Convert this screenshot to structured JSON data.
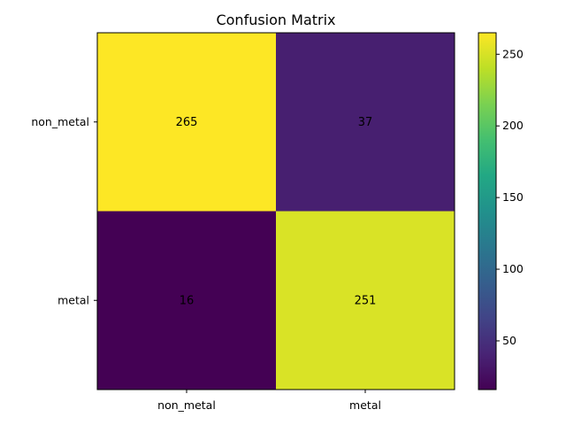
{
  "chart_data": {
    "type": "heatmap",
    "title": "Confusion Matrix",
    "xlabel": "",
    "ylabel": "",
    "x_categories": [
      "non_metal",
      "metal"
    ],
    "y_categories": [
      "non_metal",
      "metal"
    ],
    "values": [
      [
        265,
        37
      ],
      [
        16,
        251
      ]
    ],
    "colorbar": {
      "colormap": "viridis",
      "range": [
        16,
        265
      ],
      "ticks": [
        50,
        100,
        150,
        200,
        250
      ]
    },
    "grid": false,
    "legend": "none"
  }
}
